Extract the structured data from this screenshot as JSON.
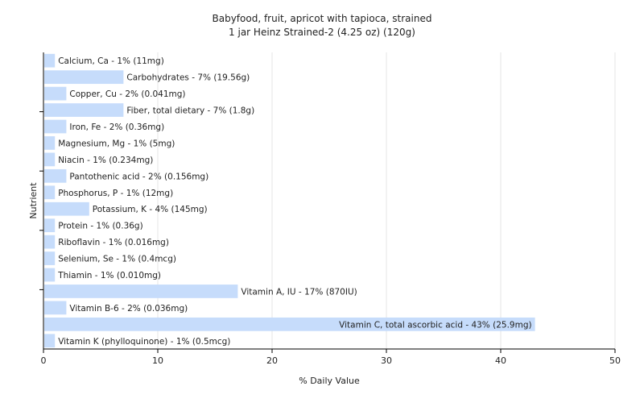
{
  "chart_data": {
    "type": "bar",
    "orientation": "horizontal",
    "title": "Babyfood, fruit, apricot with tapioca, strained",
    "subtitle": "1 jar Heinz Strained-2 (4.25 oz) (120g)",
    "xlabel": "% Daily Value",
    "ylabel": "Nutrient",
    "xlim": [
      0,
      50
    ],
    "xticks": [
      0,
      10,
      20,
      30,
      40,
      50
    ],
    "grid": true,
    "bar_color": "#c6dcfb",
    "categories": [
      "Calcium, Ca",
      "Carbohydrates",
      "Copper, Cu",
      "Fiber, total dietary",
      "Iron, Fe",
      "Magnesium, Mg",
      "Niacin",
      "Pantothenic acid",
      "Phosphorus, P",
      "Potassium, K",
      "Protein",
      "Riboflavin",
      "Selenium, Se",
      "Thiamin",
      "Vitamin A, IU",
      "Vitamin B-6",
      "Vitamin C, total ascorbic acid",
      "Vitamin K (phylloquinone)"
    ],
    "values": [
      1,
      7,
      2,
      7,
      2,
      1,
      1,
      2,
      1,
      4,
      1,
      1,
      1,
      1,
      17,
      2,
      43,
      1
    ],
    "labels": [
      "Calcium, Ca - 1% (11mg)",
      "Carbohydrates - 7% (19.56g)",
      "Copper, Cu - 2% (0.041mg)",
      "Fiber, total dietary - 7% (1.8g)",
      "Iron, Fe - 2% (0.36mg)",
      "Magnesium, Mg - 1% (5mg)",
      "Niacin - 1% (0.234mg)",
      "Pantothenic acid - 2% (0.156mg)",
      "Phosphorus, P - 1% (12mg)",
      "Potassium, K - 4% (145mg)",
      "Protein - 1% (0.36g)",
      "Riboflavin - 1% (0.016mg)",
      "Selenium, Se - 1% (0.4mcg)",
      "Thiamin - 1% (0.010mg)",
      "Vitamin A, IU - 17% (870IU)",
      "Vitamin B-6 - 2% (0.036mg)",
      "Vitamin C, total ascorbic acid - 43% (25.9mg)",
      "Vitamin K (phylloquinone) - 1% (0.5mcg)"
    ]
  }
}
